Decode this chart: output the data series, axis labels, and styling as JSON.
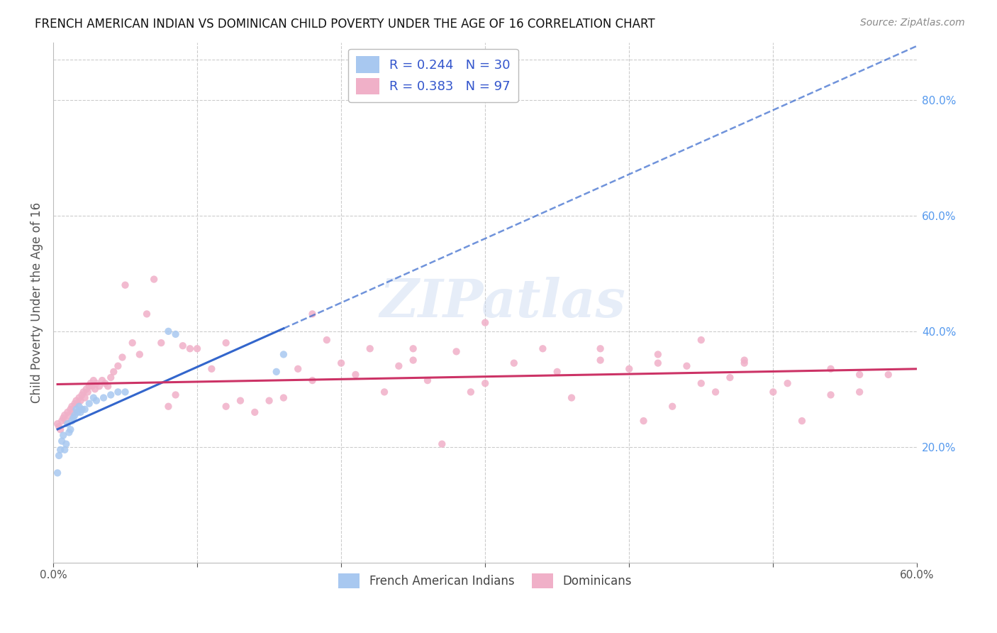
{
  "title": "FRENCH AMERICAN INDIAN VS DOMINICAN CHILD POVERTY UNDER THE AGE OF 16 CORRELATION CHART",
  "source": "Source: ZipAtlas.com",
  "ylabel": "Child Poverty Under the Age of 16",
  "xlim": [
    0.0,
    0.6
  ],
  "ylim": [
    0.0,
    0.9
  ],
  "R1": 0.244,
  "N1": 30,
  "R2": 0.383,
  "N2": 97,
  "color1": "#a8c8f0",
  "color2": "#f0b0c8",
  "trendline1_color": "#3366cc",
  "trendline2_color": "#cc3366",
  "watermark": "ZIPatlas",
  "french_x": [
    0.003,
    0.004,
    0.005,
    0.006,
    0.007,
    0.008,
    0.009,
    0.01,
    0.011,
    0.012,
    0.013,
    0.014,
    0.015,
    0.016,
    0.017,
    0.018,
    0.019,
    0.02,
    0.022,
    0.025,
    0.028,
    0.03,
    0.035,
    0.04,
    0.045,
    0.05,
    0.08,
    0.085,
    0.155,
    0.16
  ],
  "french_y": [
    0.155,
    0.185,
    0.195,
    0.21,
    0.22,
    0.195,
    0.205,
    0.24,
    0.225,
    0.23,
    0.245,
    0.25,
    0.255,
    0.265,
    0.26,
    0.27,
    0.26,
    0.265,
    0.265,
    0.275,
    0.285,
    0.28,
    0.285,
    0.29,
    0.295,
    0.295,
    0.4,
    0.395,
    0.33,
    0.36
  ],
  "dominican_x": [
    0.003,
    0.004,
    0.005,
    0.006,
    0.007,
    0.008,
    0.009,
    0.01,
    0.011,
    0.012,
    0.013,
    0.014,
    0.015,
    0.016,
    0.017,
    0.018,
    0.019,
    0.02,
    0.021,
    0.022,
    0.023,
    0.024,
    0.025,
    0.026,
    0.027,
    0.028,
    0.029,
    0.03,
    0.032,
    0.034,
    0.036,
    0.038,
    0.04,
    0.042,
    0.045,
    0.048,
    0.05,
    0.055,
    0.06,
    0.065,
    0.07,
    0.075,
    0.08,
    0.085,
    0.09,
    0.095,
    0.1,
    0.11,
    0.12,
    0.13,
    0.14,
    0.15,
    0.16,
    0.17,
    0.18,
    0.19,
    0.2,
    0.21,
    0.22,
    0.23,
    0.24,
    0.25,
    0.26,
    0.27,
    0.28,
    0.29,
    0.3,
    0.32,
    0.34,
    0.36,
    0.38,
    0.4,
    0.41,
    0.42,
    0.43,
    0.44,
    0.45,
    0.46,
    0.47,
    0.48,
    0.5,
    0.52,
    0.54,
    0.56,
    0.58,
    0.25,
    0.3,
    0.35,
    0.38,
    0.42,
    0.45,
    0.48,
    0.51,
    0.54,
    0.56,
    0.12,
    0.18
  ],
  "dominican_y": [
    0.24,
    0.235,
    0.23,
    0.245,
    0.25,
    0.255,
    0.245,
    0.26,
    0.255,
    0.265,
    0.27,
    0.26,
    0.275,
    0.28,
    0.275,
    0.285,
    0.28,
    0.29,
    0.295,
    0.285,
    0.3,
    0.295,
    0.305,
    0.31,
    0.305,
    0.315,
    0.3,
    0.31,
    0.305,
    0.315,
    0.31,
    0.305,
    0.32,
    0.33,
    0.34,
    0.355,
    0.48,
    0.38,
    0.36,
    0.43,
    0.49,
    0.38,
    0.27,
    0.29,
    0.375,
    0.37,
    0.37,
    0.335,
    0.27,
    0.28,
    0.26,
    0.28,
    0.285,
    0.335,
    0.315,
    0.385,
    0.345,
    0.325,
    0.37,
    0.295,
    0.34,
    0.35,
    0.315,
    0.205,
    0.365,
    0.295,
    0.31,
    0.345,
    0.37,
    0.285,
    0.35,
    0.335,
    0.245,
    0.36,
    0.27,
    0.34,
    0.31,
    0.295,
    0.32,
    0.35,
    0.295,
    0.245,
    0.29,
    0.325,
    0.325,
    0.37,
    0.415,
    0.33,
    0.37,
    0.345,
    0.385,
    0.345,
    0.31,
    0.335,
    0.295,
    0.38,
    0.43
  ]
}
